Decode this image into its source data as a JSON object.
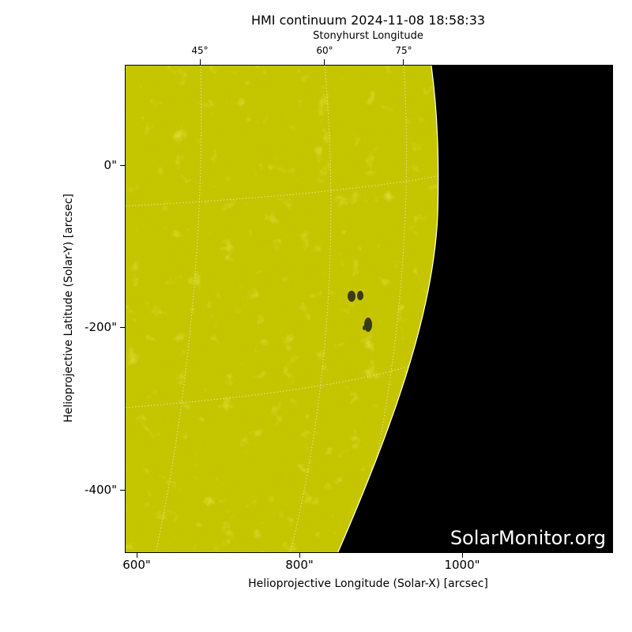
{
  "title": "HMI continuum 2024-11-08 18:58:33",
  "top_axis": {
    "label": "Stonyhurst Longitude",
    "ticks": [
      "45°",
      "60°",
      "75°"
    ]
  },
  "x_axis": {
    "label": "Helioprojective Longitude (Solar-X) [arcsec]",
    "ticks": [
      "600\"",
      "800\"",
      "1000\""
    ]
  },
  "y_axis": {
    "label": "Helioprojective Latitude (Solar-Y) [arcsec]",
    "ticks": [
      "0\"",
      "-200\"",
      "-400\""
    ]
  },
  "watermark": "SolarMonitor.org",
  "colors": {
    "sun": "#c8c800",
    "space": "#000000",
    "grid": "#e6e6a0",
    "sunspot": "#3a3a1a"
  }
}
